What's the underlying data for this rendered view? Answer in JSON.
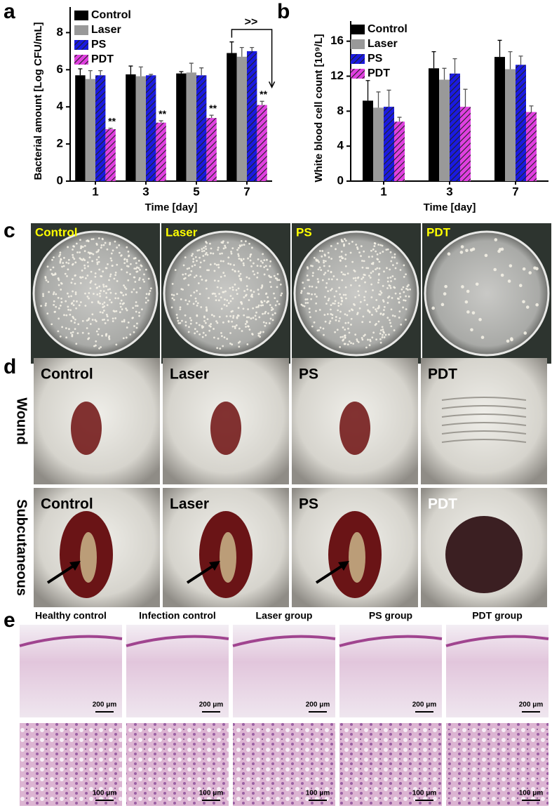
{
  "chart_data": [
    {
      "type": "bar",
      "panel": "a",
      "ylabel": "Bacterial amount [Log CFU/mL]",
      "xlabel": "Time [day]",
      "categories": [
        "1",
        "3",
        "5",
        "7"
      ],
      "series": [
        {
          "name": "Control",
          "color": "#000000",
          "hatch": false,
          "values": [
            5.7,
            5.75,
            5.8,
            6.9
          ],
          "errors": [
            0.35,
            0.45,
            0.1,
            0.6
          ]
        },
        {
          "name": "Laser",
          "color": "#999999",
          "hatch": false,
          "values": [
            5.5,
            5.65,
            5.85,
            6.7
          ],
          "errors": [
            0.45,
            0.5,
            0.5,
            0.5
          ]
        },
        {
          "name": "PS",
          "color": "#1a1ae0",
          "hatch": true,
          "values": [
            5.7,
            5.7,
            5.7,
            7.0
          ],
          "errors": [
            0.25,
            0.05,
            0.4,
            0.2
          ]
        },
        {
          "name": "PDT",
          "color": "#e040e0",
          "hatch": true,
          "values": [
            2.8,
            3.15,
            3.4,
            4.1
          ],
          "errors": [
            0.05,
            0.1,
            0.15,
            0.2
          ]
        }
      ],
      "significance": [
        "**",
        "**",
        "**",
        "**"
      ],
      "comparison": ">>",
      "ylim": [
        0,
        9
      ],
      "yticks": [
        0,
        2,
        4,
        6,
        8
      ],
      "legend": "top-left"
    },
    {
      "type": "bar",
      "panel": "b",
      "ylabel": "White blood cell count [10⁹/L]",
      "xlabel": "Time [day]",
      "categories": [
        "1",
        "3",
        "7"
      ],
      "series": [
        {
          "name": "Control",
          "color": "#000000",
          "hatch": false,
          "values": [
            9.2,
            12.9,
            14.2
          ],
          "errors": [
            2.3,
            1.9,
            1.9
          ]
        },
        {
          "name": "Laser",
          "color": "#999999",
          "hatch": false,
          "values": [
            8.4,
            11.6,
            12.8
          ],
          "errors": [
            1.8,
            1.3,
            2.0
          ]
        },
        {
          "name": "PS",
          "color": "#1a1ae0",
          "hatch": true,
          "values": [
            8.5,
            12.3,
            13.3
          ],
          "errors": [
            1.9,
            1.7,
            1.0
          ]
        },
        {
          "name": "PDT",
          "color": "#e040e0",
          "hatch": true,
          "values": [
            6.8,
            8.5,
            7.9
          ],
          "errors": [
            0.5,
            2.0,
            0.7
          ]
        }
      ],
      "ylim": [
        0,
        17.5
      ],
      "yticks": [
        0,
        4,
        8,
        12,
        16
      ],
      "legend": "top-left"
    }
  ],
  "plates": {
    "panel": "c",
    "labels": [
      "Control",
      "Laser",
      "PS",
      "PDT"
    ]
  },
  "wounds": {
    "panel": "d",
    "row_labels": [
      "Wound",
      "Subcutaneous"
    ],
    "rows": [
      [
        "Control",
        "Laser",
        "PS",
        "PDT"
      ],
      [
        "Control",
        "Laser",
        "PS",
        "PDT"
      ]
    ]
  },
  "histology": {
    "panel": "e",
    "columns": [
      "Healthy control",
      "Infection control",
      "Laser group",
      "PS group",
      "PDT group"
    ],
    "scale_bars": [
      [
        "200 μm",
        "200 μm",
        "200 μm",
        "200 μm",
        "200 μm"
      ],
      [
        "100 μm",
        "100 μm",
        "100 μm",
        "100 μm",
        "100 μm"
      ]
    ]
  }
}
